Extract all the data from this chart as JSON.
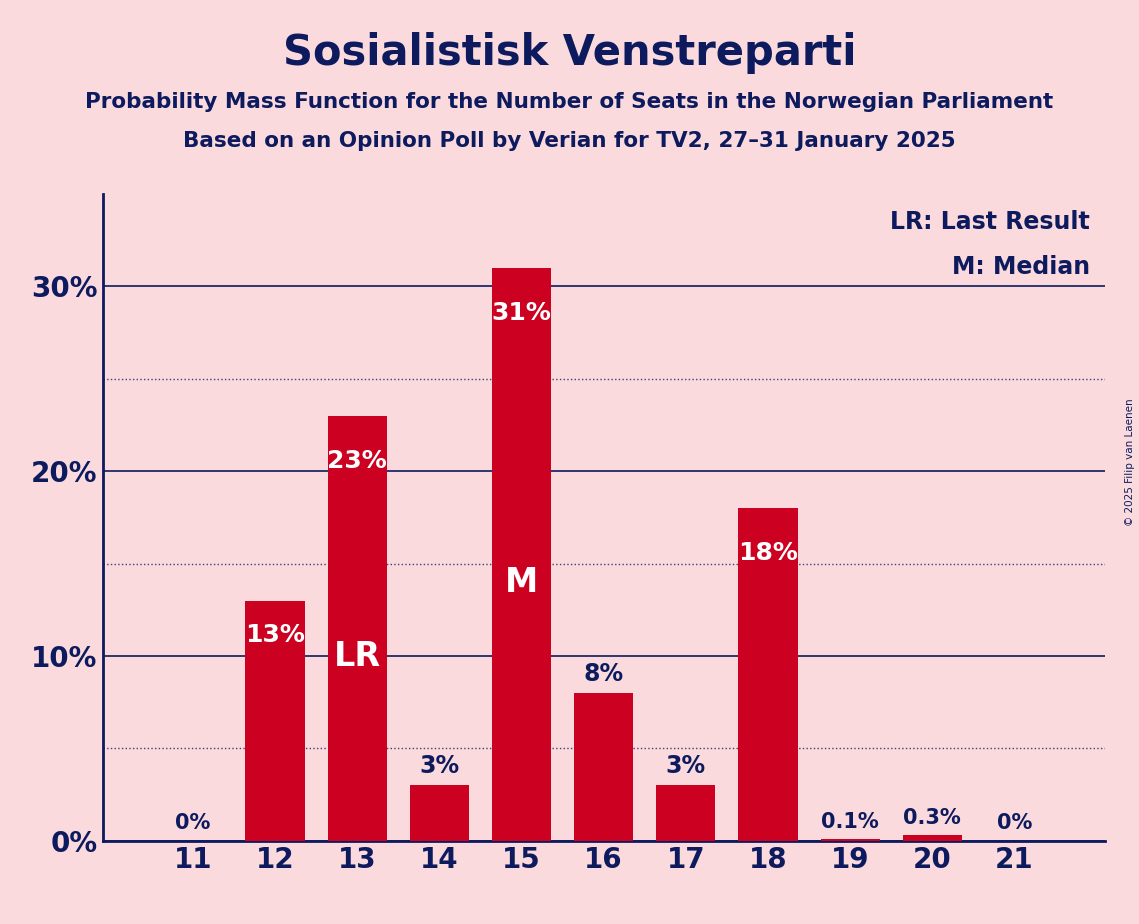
{
  "title": "Sosialistisk Venstreparti",
  "subtitle1": "Probability Mass Function for the Number of Seats in the Norwegian Parliament",
  "subtitle2": "Based on an Opinion Poll by Verian for TV2, 27–31 January 2025",
  "copyright": "© 2025 Filip van Laenen",
  "seats": [
    11,
    12,
    13,
    14,
    15,
    16,
    17,
    18,
    19,
    20,
    21
  ],
  "probabilities": [
    0.0,
    13.0,
    23.0,
    3.0,
    31.0,
    8.0,
    3.0,
    18.0,
    0.1,
    0.3,
    0.0
  ],
  "prob_labels": [
    "0%",
    "13%",
    "23%",
    "3%",
    "31%",
    "8%",
    "3%",
    "18%",
    "0.1%",
    "0.3%",
    "0%"
  ],
  "bar_color": "#CC0020",
  "background_color": "#FADADD",
  "title_color": "#0D1B5E",
  "axis_color": "#0D1B5E",
  "grid_color": "#0D1B5E",
  "last_result_seat": 13,
  "median_seat": 15,
  "ylim": [
    0,
    35
  ],
  "yticks": [
    0,
    10,
    20,
    30
  ],
  "ytick_labels": [
    "0%",
    "10%",
    "20%",
    "30%"
  ],
  "legend_lr": "LR: Last Result",
  "legend_m": "M: Median",
  "lr_label": "LR",
  "m_label": "M"
}
